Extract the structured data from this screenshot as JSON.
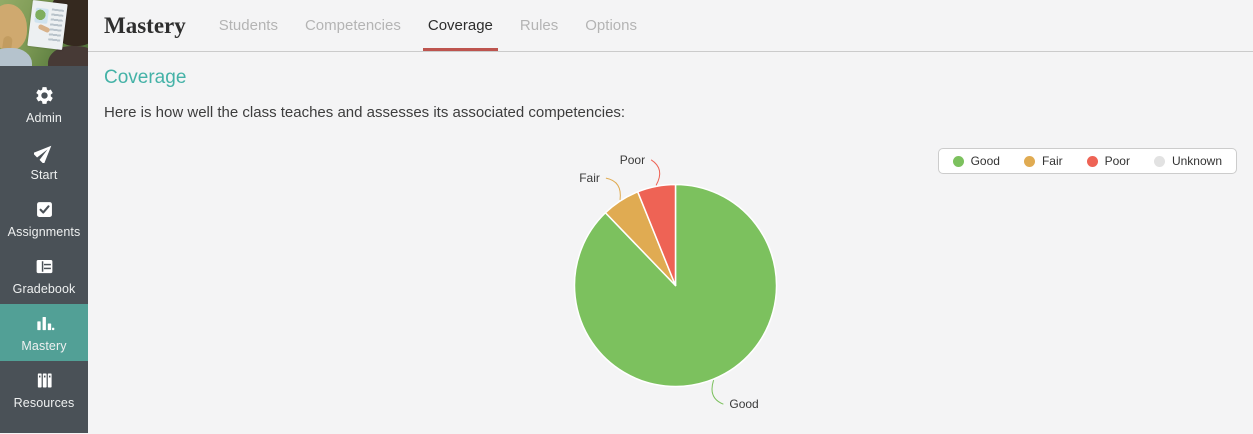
{
  "sidebar": {
    "photo": "students-reading-map-photo",
    "items": [
      {
        "label": "Admin",
        "icon": "gear",
        "active": false
      },
      {
        "label": "Start",
        "icon": "send-arrow",
        "active": false
      },
      {
        "label": "Assignments",
        "icon": "checkbox",
        "active": false
      },
      {
        "label": "Gradebook",
        "icon": "grid-book",
        "active": false
      },
      {
        "label": "Mastery",
        "icon": "bar-chart",
        "active": true
      },
      {
        "label": "Resources",
        "icon": "books",
        "active": false
      }
    ]
  },
  "header": {
    "title": "Mastery",
    "tabs": [
      {
        "label": "Students",
        "active": false
      },
      {
        "label": "Competencies",
        "active": false
      },
      {
        "label": "Coverage",
        "active": true
      },
      {
        "label": "Rules",
        "active": false
      },
      {
        "label": "Options",
        "active": false
      }
    ]
  },
  "main": {
    "heading": "Coverage",
    "description": "Here is how well the class teaches and assesses its associated competencies:"
  },
  "chart_data": {
    "type": "pie",
    "title": "",
    "categories": [
      "Good",
      "Fair",
      "Poor",
      "Unknown"
    ],
    "values": [
      87.8,
      6.1,
      6.1,
      0
    ],
    "colors": [
      "#7cc15e",
      "#e0ab52",
      "#ee6355",
      "#e2e2e2"
    ],
    "start_angle_deg": 0,
    "direction": "clockwise",
    "data_labels": [
      "Good",
      "Fair",
      "Poor"
    ],
    "legend": {
      "position": "top-right",
      "entries": [
        "Good",
        "Fair",
        "Poor",
        "Unknown"
      ]
    }
  },
  "colors": {
    "sidebar_background": "#4a5157",
    "sidebar_active_background": "#52a096",
    "heading_teal": "#44b2a7",
    "tab_underline_red": "#bd544e",
    "divider": "#cbcbcb",
    "page_background": "#f4f4f5"
  }
}
